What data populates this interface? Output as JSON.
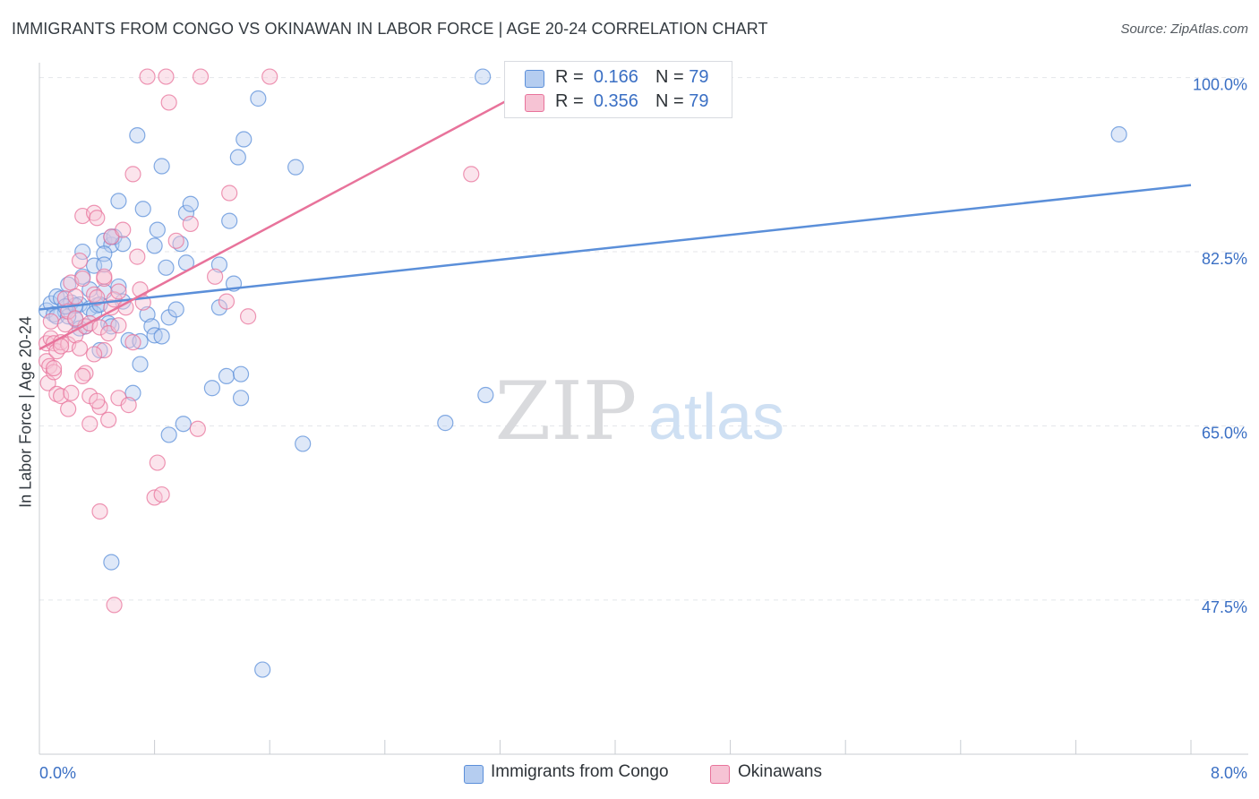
{
  "title": "IMMIGRANTS FROM CONGO VS OKINAWAN IN LABOR FORCE | AGE 20-24 CORRELATION CHART",
  "source": "Source: ZipAtlas.com",
  "watermark": {
    "zip": "ZIP",
    "atlas": "atlas"
  },
  "legend": {
    "r_label": "R =",
    "n_label": "N =",
    "series": [
      {
        "name": "Immigrants from Congo",
        "r": "0.166",
        "n": "79",
        "color": "#5b8fd9",
        "fill": "#b5cdf0"
      },
      {
        "name": "Okinawans",
        "r": "0.356",
        "n": "79",
        "color": "#e8739b",
        "fill": "#f6c3d4"
      }
    ]
  },
  "chart_data": {
    "type": "scatter",
    "title": "IMMIGRANTS FROM CONGO VS OKINAWAN IN LABOR FORCE | AGE 20-24 CORRELATION CHART",
    "xlabel": "",
    "ylabel": "In Labor Force | Age 20-24",
    "xlim": [
      0,
      8
    ],
    "ylim": [
      32,
      101.5
    ],
    "x_tick_labels": {
      "min": "0.0%",
      "max": "8.0%"
    },
    "y_ticks": [
      47.5,
      65.0,
      82.5,
      100.0
    ],
    "y_tick_labels": [
      "47.5%",
      "65.0%",
      "82.5%",
      "100.0%"
    ],
    "grid": true,
    "series": [
      {
        "name": "Immigrants from Congo",
        "color": "#5b8fd9",
        "trend": {
          "x": [
            0.0,
            8.0
          ],
          "y": [
            76.7,
            89.2
          ]
        },
        "points": [
          [
            0.05,
            76.6
          ],
          [
            0.08,
            77.3
          ],
          [
            0.1,
            76.2
          ],
          [
            0.12,
            78.0
          ],
          [
            0.15,
            77.8
          ],
          [
            0.18,
            76.5
          ],
          [
            0.2,
            79.2
          ],
          [
            0.22,
            77.4
          ],
          [
            0.25,
            75.7
          ],
          [
            0.28,
            77.2
          ],
          [
            0.3,
            82.5
          ],
          [
            0.3,
            80.0
          ],
          [
            0.32,
            75.0
          ],
          [
            0.35,
            76.8
          ],
          [
            0.35,
            78.7
          ],
          [
            0.38,
            81.1
          ],
          [
            0.4,
            77.1
          ],
          [
            0.42,
            72.6
          ],
          [
            0.45,
            78.5
          ],
          [
            0.45,
            83.6
          ],
          [
            0.48,
            75.3
          ],
          [
            0.5,
            75.0
          ],
          [
            0.5,
            83.2
          ],
          [
            0.52,
            84.0
          ],
          [
            0.45,
            82.3
          ],
          [
            0.45,
            81.2
          ],
          [
            0.55,
            87.6
          ],
          [
            0.55,
            79.0
          ],
          [
            0.58,
            77.5
          ],
          [
            0.62,
            73.6
          ],
          [
            0.65,
            68.3
          ],
          [
            0.68,
            94.2
          ],
          [
            0.7,
            71.2
          ],
          [
            0.7,
            73.5
          ],
          [
            0.72,
            86.8
          ],
          [
            0.75,
            76.2
          ],
          [
            0.78,
            75.0
          ],
          [
            0.8,
            74.1
          ],
          [
            0.8,
            83.1
          ],
          [
            0.82,
            84.7
          ],
          [
            0.85,
            91.1
          ],
          [
            0.85,
            74.0
          ],
          [
            0.88,
            80.9
          ],
          [
            0.9,
            64.1
          ],
          [
            0.9,
            75.9
          ],
          [
            0.95,
            76.7
          ],
          [
            0.98,
            83.3
          ],
          [
            1.0,
            65.2
          ],
          [
            1.02,
            81.4
          ],
          [
            1.02,
            86.4
          ],
          [
            1.05,
            87.3
          ],
          [
            1.2,
            68.8
          ],
          [
            1.25,
            76.9
          ],
          [
            1.25,
            81.2
          ],
          [
            1.3,
            70.0
          ],
          [
            1.32,
            85.6
          ],
          [
            1.35,
            79.3
          ],
          [
            1.38,
            92.0
          ],
          [
            1.4,
            70.2
          ],
          [
            1.4,
            67.8
          ],
          [
            1.42,
            93.8
          ],
          [
            1.52,
            97.9
          ],
          [
            1.55,
            40.5
          ],
          [
            1.78,
            91.0
          ],
          [
            1.83,
            63.2
          ],
          [
            2.82,
            65.3
          ],
          [
            3.08,
            100.1
          ],
          [
            3.1,
            68.1
          ],
          [
            7.5,
            94.3
          ],
          [
            0.5,
            51.3
          ],
          [
            0.12,
            76.0
          ],
          [
            0.2,
            76.0
          ],
          [
            0.28,
            74.8
          ],
          [
            0.38,
            76.3
          ],
          [
            0.5,
            84.0
          ],
          [
            0.18,
            77.0
          ],
          [
            0.25,
            77.1
          ],
          [
            0.42,
            77.2
          ],
          [
            0.58,
            83.3
          ]
        ]
      },
      {
        "name": "Okinawans",
        "color": "#e8739b",
        "trend": {
          "x": [
            0.0,
            3.6
          ],
          "y": [
            72.7,
            100.4
          ]
        },
        "points": [
          [
            0.05,
            73.3
          ],
          [
            0.05,
            71.5
          ],
          [
            0.06,
            69.3
          ],
          [
            0.07,
            71.0
          ],
          [
            0.08,
            75.5
          ],
          [
            0.08,
            73.8
          ],
          [
            0.1,
            73.3
          ],
          [
            0.1,
            70.4
          ],
          [
            0.12,
            68.2
          ],
          [
            0.12,
            72.5
          ],
          [
            0.15,
            73.4
          ],
          [
            0.15,
            68.0
          ],
          [
            0.18,
            77.8
          ],
          [
            0.18,
            75.2
          ],
          [
            0.2,
            73.2
          ],
          [
            0.2,
            66.7
          ],
          [
            0.22,
            79.4
          ],
          [
            0.22,
            68.3
          ],
          [
            0.25,
            78.0
          ],
          [
            0.25,
            74.1
          ],
          [
            0.28,
            81.6
          ],
          [
            0.28,
            72.8
          ],
          [
            0.3,
            86.1
          ],
          [
            0.3,
            79.8
          ],
          [
            0.32,
            75.0
          ],
          [
            0.32,
            70.3
          ],
          [
            0.35,
            75.3
          ],
          [
            0.35,
            68.0
          ],
          [
            0.35,
            65.2
          ],
          [
            0.38,
            78.2
          ],
          [
            0.38,
            86.4
          ],
          [
            0.4,
            77.9
          ],
          [
            0.4,
            85.9
          ],
          [
            0.42,
            74.9
          ],
          [
            0.42,
            66.9
          ],
          [
            0.42,
            56.4
          ],
          [
            0.45,
            79.8
          ],
          [
            0.45,
            72.6
          ],
          [
            0.48,
            65.6
          ],
          [
            0.48,
            74.3
          ],
          [
            0.5,
            84.0
          ],
          [
            0.5,
            76.9
          ],
          [
            0.52,
            77.7
          ],
          [
            0.52,
            47.0
          ],
          [
            0.55,
            67.8
          ],
          [
            0.55,
            75.1
          ],
          [
            0.58,
            84.7
          ],
          [
            0.6,
            76.9
          ],
          [
            0.62,
            67.1
          ],
          [
            0.65,
            73.4
          ],
          [
            0.65,
            90.3
          ],
          [
            0.68,
            82.0
          ],
          [
            0.7,
            78.7
          ],
          [
            0.72,
            77.4
          ],
          [
            0.75,
            100.1
          ],
          [
            0.8,
            57.8
          ],
          [
            0.82,
            61.3
          ],
          [
            0.85,
            58.1
          ],
          [
            0.88,
            100.1
          ],
          [
            0.9,
            97.5
          ],
          [
            0.95,
            83.6
          ],
          [
            1.05,
            85.3
          ],
          [
            1.1,
            64.7
          ],
          [
            1.12,
            100.1
          ],
          [
            1.22,
            80.0
          ],
          [
            1.3,
            77.5
          ],
          [
            1.32,
            88.4
          ],
          [
            1.45,
            76.0
          ],
          [
            1.6,
            100.1
          ],
          [
            3.0,
            90.3
          ],
          [
            0.1,
            70.8
          ],
          [
            0.15,
            73.0
          ],
          [
            0.2,
            76.5
          ],
          [
            0.25,
            75.8
          ],
          [
            0.3,
            70.0
          ],
          [
            0.38,
            72.2
          ],
          [
            0.45,
            80.0
          ],
          [
            0.55,
            78.5
          ],
          [
            0.4,
            67.5
          ]
        ]
      }
    ]
  }
}
